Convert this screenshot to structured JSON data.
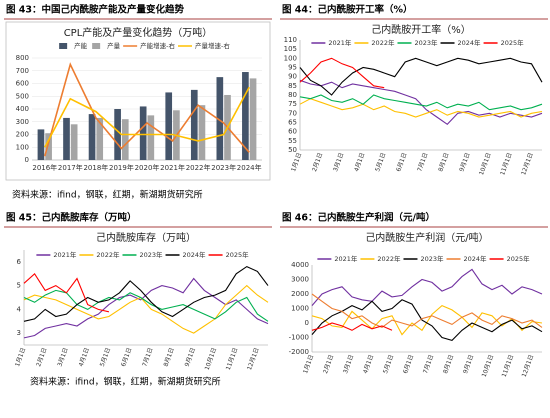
{
  "headers": [
    "图 43：中国己内酰胺产能及产量变化趋势",
    "图 44：己内酰胺开工率（%）",
    "图 45：己内酰胺库存（万吨）",
    "图 46：己内酰胺生产利润（元/吨）"
  ],
  "sources": [
    "资料来源：ifind，钢联，红期，新湖期货研究所",
    "资料来源：ifind，钢联，红期，新湖期货研究所"
  ],
  "chart_data": [
    {
      "type": "bar",
      "title": "CPL产能及产量变化趋势（万吨）",
      "grid": true,
      "categories": [
        "2016年",
        "2017年",
        "2018年",
        "2019年",
        "2020年",
        "2021年",
        "2022年",
        "2023年",
        "2024年"
      ],
      "ylim": [
        0,
        800
      ],
      "yticks": [
        0,
        100,
        200,
        300,
        400,
        500,
        600,
        700,
        800
      ],
      "y2lim": [
        0,
        40
      ],
      "series": [
        {
          "name": "产能",
          "type": "bar",
          "color": "#44546a",
          "values": [
            240,
            330,
            360,
            400,
            420,
            530,
            550,
            650,
            690
          ]
        },
        {
          "name": "产量",
          "type": "bar",
          "color": "#a5a5a5",
          "values": [
            210,
            280,
            330,
            320,
            350,
            390,
            430,
            510,
            640
          ]
        },
        {
          "name": "产能增速-右",
          "type": "line",
          "axis": "y2",
          "color": "#ed7d31",
          "values": [
            1.5,
            37.5,
            16.5,
            4.5,
            14.5,
            7.5,
            21.5,
            14.5,
            3
          ]
        },
        {
          "name": "产量增速-右",
          "type": "line",
          "axis": "y2",
          "color": "#ffc000",
          "values": [
            5,
            24,
            19,
            10,
            10,
            10,
            7.5,
            10,
            28.5
          ]
        }
      ]
    },
    {
      "type": "line",
      "title": "己内酰胺开工率（%）",
      "grid": false,
      "categories": [
        "1月1日",
        null,
        "2月1日",
        null,
        "3月1日",
        null,
        "4月1日",
        null,
        "5月1日",
        null,
        "6月1日",
        null,
        "7月1日",
        null,
        "8月1日",
        null,
        "9月1日",
        null,
        "10月1日",
        null,
        "11月1日",
        null,
        "12月1日",
        null
      ],
      "ylim": [
        50,
        110
      ],
      "yticks": [
        50,
        55,
        60,
        65,
        70,
        75,
        80,
        85,
        90,
        95,
        100,
        105,
        110
      ],
      "series": [
        {
          "name": "2021年",
          "color": "#7030a0",
          "values": [
            88,
            86,
            85,
            87,
            84,
            86,
            85,
            84,
            83,
            82,
            80,
            78,
            72,
            68,
            64,
            70,
            71,
            69,
            70,
            68,
            70,
            69,
            68,
            70
          ]
        },
        {
          "name": "2022年",
          "color": "#ffc000",
          "values": [
            75,
            78,
            76,
            74,
            72,
            73,
            75,
            72,
            74,
            71,
            70,
            68,
            70,
            72,
            69,
            71,
            70,
            68,
            69,
            70,
            71,
            68,
            70,
            71
          ]
        },
        {
          "name": "2023年",
          "color": "#00b050",
          "values": [
            79,
            78,
            80,
            77,
            76,
            78,
            75,
            80,
            78,
            77,
            76,
            75,
            74,
            76,
            73,
            75,
            74,
            76,
            72,
            73,
            74,
            72,
            73,
            75
          ]
        },
        {
          "name": "2024年",
          "color": "#000000",
          "values": [
            95,
            88,
            85,
            80,
            87,
            92,
            95,
            94,
            92,
            90,
            98,
            100,
            98,
            96,
            98,
            100,
            99,
            97,
            98,
            99,
            100,
            98,
            97,
            87
          ]
        },
        {
          "name": "2025年",
          "color": "#ff0000",
          "values": [
            87,
            92,
            98,
            100,
            97,
            95,
            90,
            85,
            84,
            null,
            null,
            null,
            null,
            null,
            null,
            null,
            null,
            null,
            null,
            null,
            null,
            null,
            null,
            null
          ]
        }
      ]
    },
    {
      "type": "line",
      "title": "己内酰胺库存（万吨）",
      "grid": false,
      "categories": [
        "1月1日",
        null,
        "2月1日",
        null,
        "3月1日",
        null,
        "4月1日",
        null,
        "5月1日",
        null,
        "6月1日",
        null,
        "7月1日",
        null,
        "8月1日",
        null,
        "9月1日",
        null,
        "10月1日",
        null,
        "11月1日",
        null,
        "12月1日",
        null
      ],
      "ylim": [
        2.5,
        6.5
      ],
      "yticks": [
        3,
        4,
        5,
        6
      ],
      "series": [
        {
          "name": "2021年",
          "color": "#7030a0",
          "values": [
            2.8,
            2.9,
            3.2,
            3.3,
            3.4,
            3.3,
            3.6,
            3.8,
            4.2,
            4.5,
            4.6,
            4.4,
            4.8,
            5.0,
            4.9,
            4.7,
            5.3,
            4.8,
            4.5,
            4.2,
            4.4,
            4.0,
            3.6,
            3.4
          ]
        },
        {
          "name": "2022年",
          "color": "#ffc000",
          "values": [
            4.4,
            4.6,
            4.5,
            4.4,
            4.2,
            4.0,
            3.8,
            3.6,
            3.7,
            4.0,
            4.3,
            4.5,
            4.0,
            3.8,
            3.5,
            3.2,
            3.0,
            3.3,
            3.6,
            4.2,
            4.6,
            5.0,
            4.6,
            4.3
          ]
        },
        {
          "name": "2023年",
          "color": "#00b050",
          "values": [
            4.5,
            4.3,
            4.6,
            4.8,
            4.7,
            4.2,
            4.0,
            4.3,
            4.5,
            4.4,
            4.7,
            4.5,
            4.2,
            4.0,
            4.1,
            4.2,
            4.0,
            3.8,
            3.6,
            3.9,
            4.3,
            4.5,
            3.8,
            3.5
          ]
        },
        {
          "name": "2024年",
          "color": "#000000",
          "values": [
            3.5,
            3.6,
            4.0,
            3.7,
            3.8,
            4.2,
            4.5,
            4.3,
            4.4,
            4.7,
            5.2,
            4.8,
            4.3,
            3.9,
            3.7,
            4.0,
            4.3,
            4.5,
            4.6,
            4.8,
            5.5,
            5.8,
            5.6,
            5.0
          ]
        },
        {
          "name": "2025年",
          "color": "#ff0000",
          "values": [
            5.1,
            5.5,
            4.8,
            5.0,
            4.7,
            5.3,
            4.2,
            4.0,
            3.9,
            null,
            null,
            null,
            null,
            null,
            null,
            null,
            null,
            null,
            null,
            null,
            null,
            null,
            null,
            null
          ]
        }
      ]
    },
    {
      "type": "line",
      "title": "己内酰胺生产利润（元/吨）",
      "grid": false,
      "categories": [
        "1月1日",
        null,
        "2月1日",
        null,
        "3月1日",
        null,
        "4月1日",
        null,
        "5月1日",
        null,
        "6月1日",
        null,
        "7月1日",
        null,
        "8月1日",
        null,
        "9月1日",
        null,
        "10月1日",
        null,
        "11月1日",
        null,
        "12月1日",
        null
      ],
      "ylim": [
        -2000,
        4000
      ],
      "yticks": [
        -2000,
        -1000,
        0,
        1000,
        2000,
        3000,
        4000
      ],
      "series": [
        {
          "name": "2021年",
          "color": "#7030a0",
          "values": [
            1200,
            2000,
            2300,
            2500,
            1800,
            1600,
            1500,
            2200,
            1800,
            1900,
            2500,
            3000,
            2800,
            2200,
            2500,
            3200,
            3700,
            2700,
            2300,
            2600,
            2000,
            2500,
            2300,
            2000
          ]
        },
        {
          "name": "2022年",
          "color": "#ffc000",
          "values": [
            500,
            300,
            -200,
            -300,
            800,
            200,
            -400,
            300,
            500,
            -800,
            0,
            -500,
            600,
            1200,
            900,
            400,
            -300,
            700,
            500,
            -200,
            300,
            -500,
            100,
            0
          ]
        },
        {
          "name": "2023年",
          "color": "#000000",
          "values": [
            -800,
            0,
            500,
            800,
            1200,
            900,
            1500,
            800,
            1000,
            1600,
            1300,
            200,
            -200,
            -1000,
            -1200,
            -500,
            0,
            -300,
            -600,
            -100,
            200,
            -400,
            -200,
            -600
          ]
        },
        {
          "name": "2024年",
          "color": "#ed7d31",
          "values": [
            2000,
            1500,
            1000,
            800,
            300,
            500,
            0,
            -300,
            200,
            0,
            -200,
            300,
            500,
            200,
            -100,
            400,
            700,
            200,
            -100,
            500,
            300,
            0,
            200,
            -300
          ]
        },
        {
          "name": "2025年",
          "color": "#ff0000",
          "values": [
            -500,
            -300,
            0,
            -200,
            -500,
            -100,
            -400,
            -200,
            -500,
            null,
            null,
            null,
            null,
            null,
            null,
            null,
            null,
            null,
            null,
            null,
            null,
            null,
            null,
            null
          ]
        }
      ]
    }
  ]
}
